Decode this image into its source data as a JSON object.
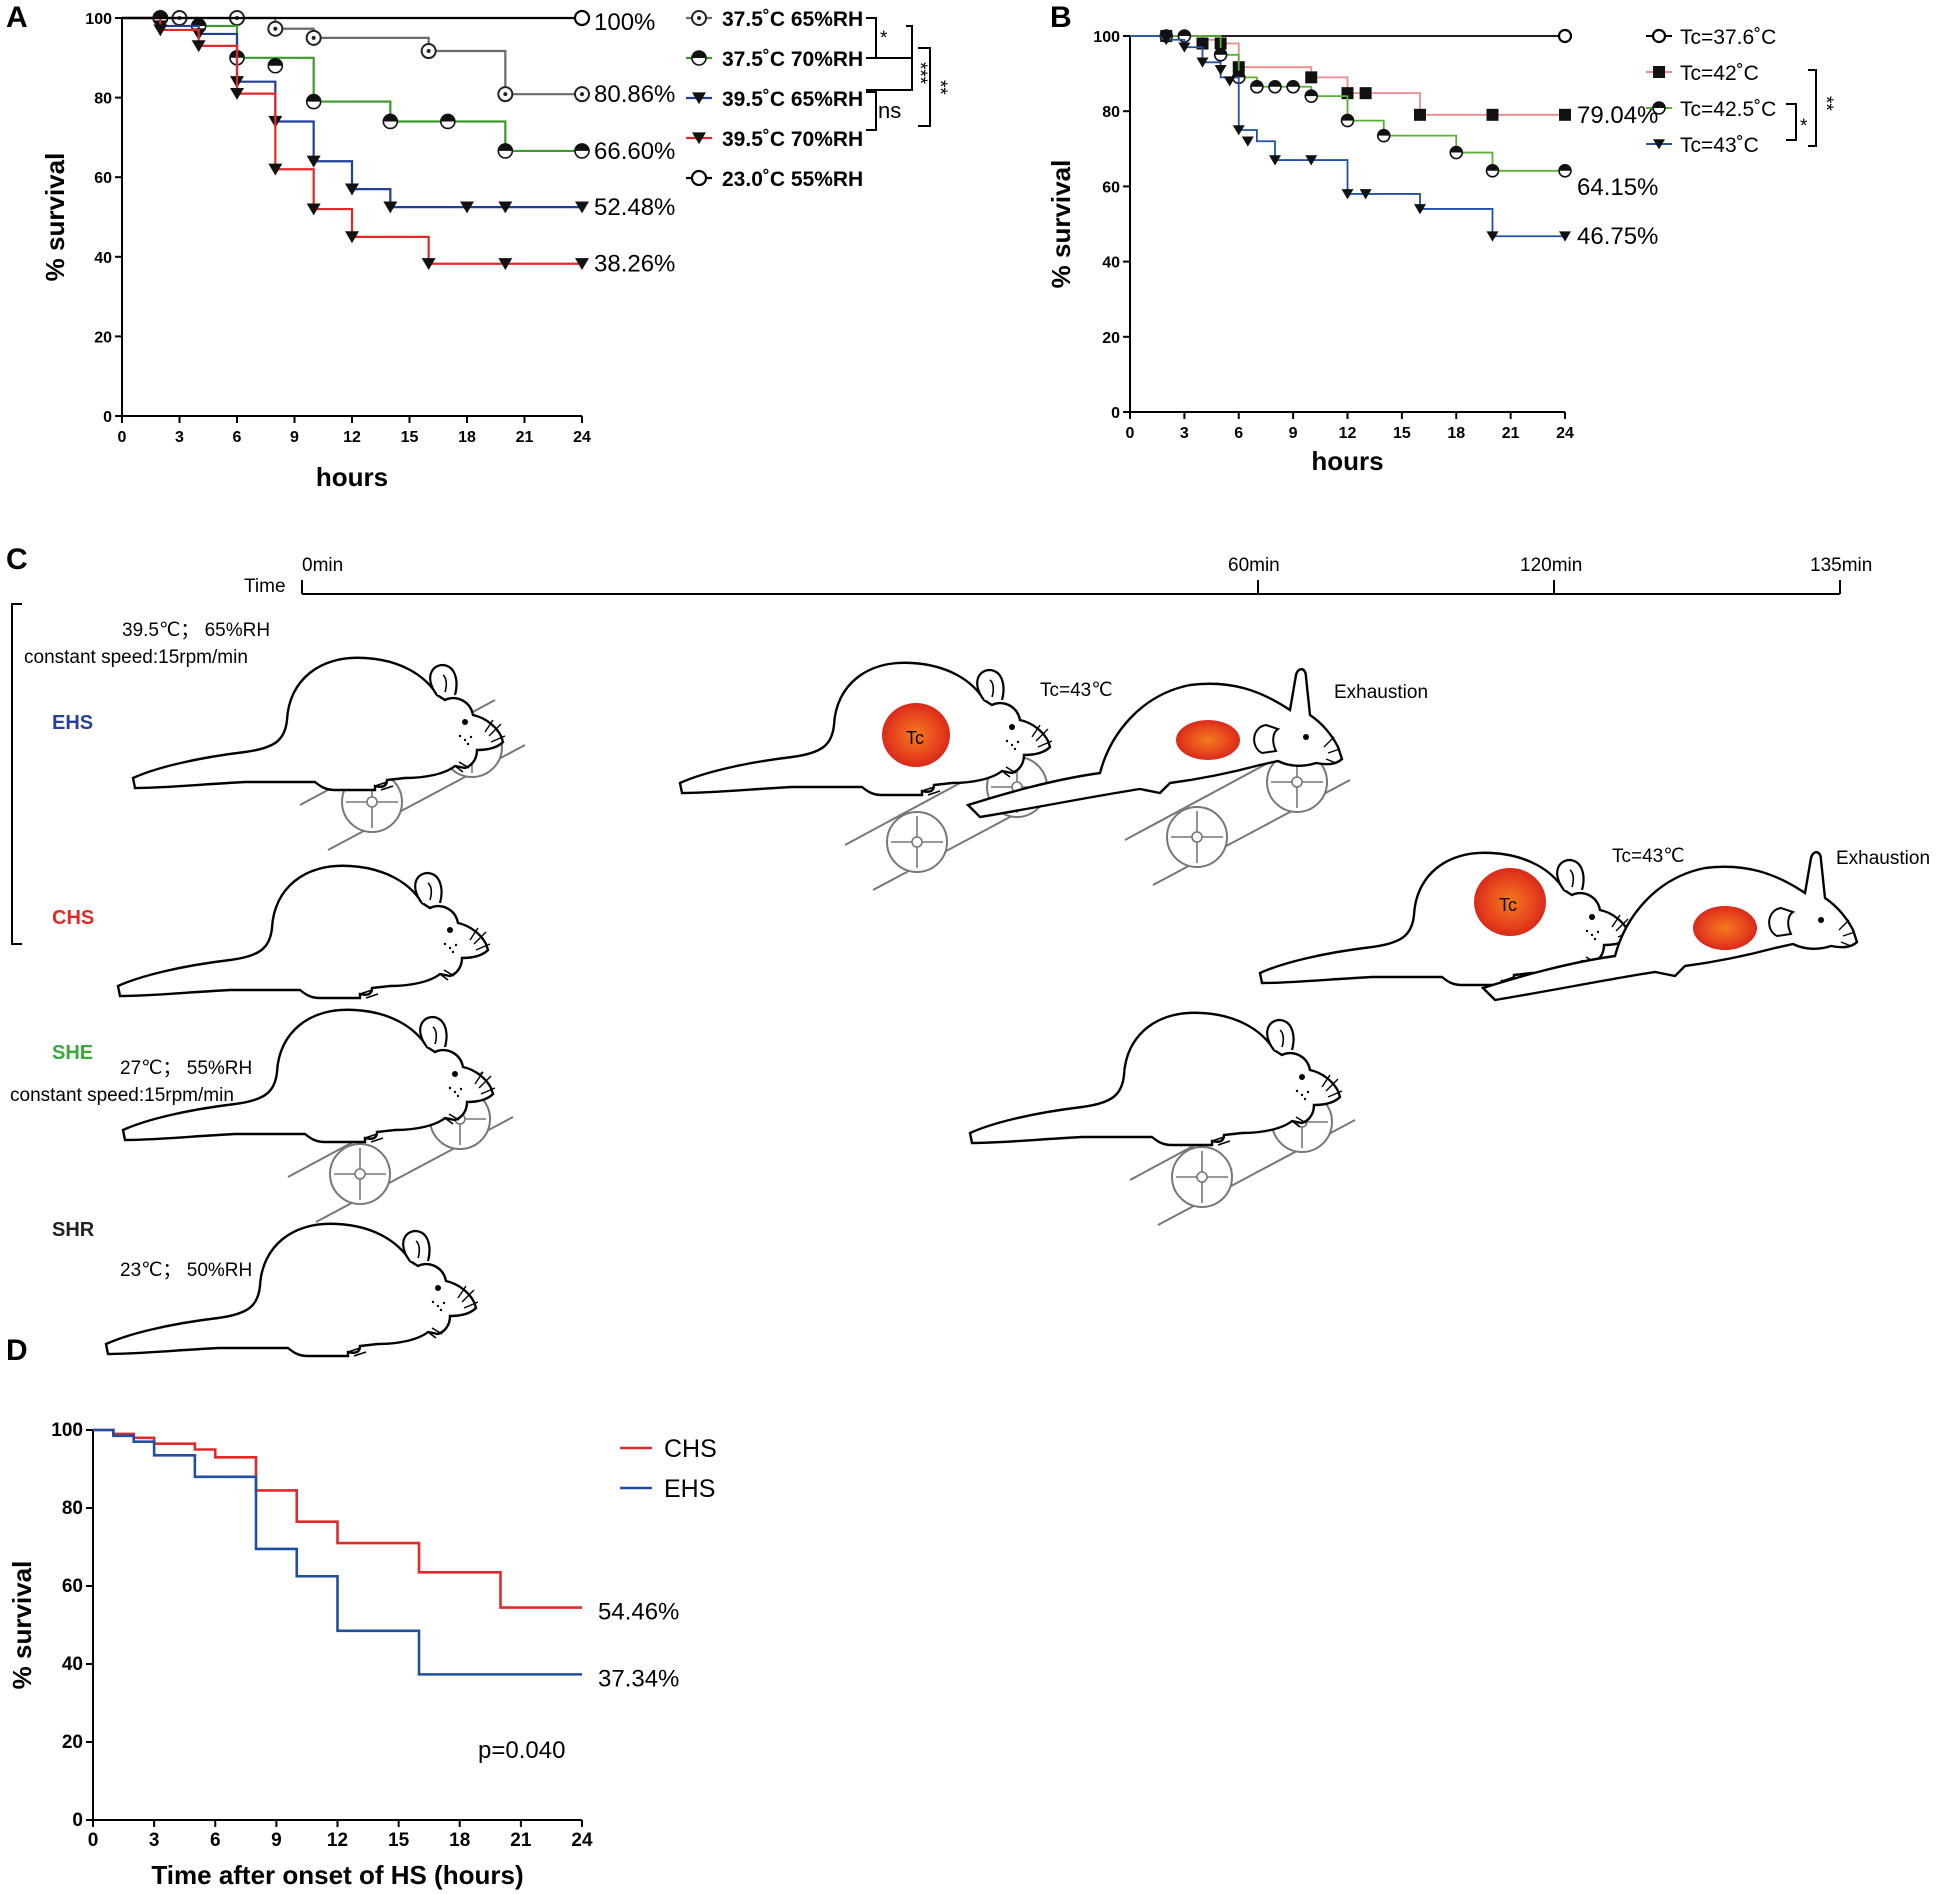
{
  "panels": {
    "A": {
      "label": "A"
    },
    "B": {
      "label": "B"
    },
    "C": {
      "label": "C"
    },
    "D": {
      "label": "D"
    }
  },
  "chart_data": [
    {
      "panel": "A",
      "type": "line",
      "subtype": "kaplan-meier",
      "xlabel": "hours",
      "ylabel": "% survival",
      "xlim": [
        0,
        24
      ],
      "ylim": [
        0,
        100
      ],
      "xticks": [
        0,
        3,
        6,
        9,
        12,
        15,
        18,
        21,
        24
      ],
      "yticks": [
        0,
        20,
        40,
        60,
        80,
        100
      ],
      "series": [
        {
          "name": "37.5˚C 65%RH",
          "color": "#6b6b6b",
          "marker": "circle-dot",
          "x": [
            0,
            6,
            8,
            10,
            16,
            20,
            24
          ],
          "y": [
            100,
            100,
            97.3,
            95,
            91.7,
            80.86,
            80.86
          ],
          "markers_x": [
            2,
            3,
            6,
            8,
            10,
            16,
            20,
            24
          ],
          "markers_y": [
            100,
            100,
            100,
            97.3,
            95,
            91.7,
            80.86,
            80.86
          ],
          "end_label": "80.86%"
        },
        {
          "name": "37.5˚C 70%RH",
          "color": "#3a9a2a",
          "marker": "circle-half",
          "x": [
            0,
            4,
            6,
            10,
            14,
            20,
            24
          ],
          "y": [
            100,
            98,
            90,
            79,
            74,
            66.6,
            66.6
          ],
          "markers_x": [
            2,
            4,
            6,
            8,
            10,
            14,
            17,
            20,
            24
          ],
          "markers_y": [
            100,
            98,
            90,
            88,
            79,
            74,
            74,
            66.6,
            66.6
          ],
          "end_label": "66.60%"
        },
        {
          "name": "39.5˚C 65%RH",
          "color": "#1f3f99",
          "marker": "triangle-down",
          "x": [
            0,
            2,
            4,
            6,
            8,
            10,
            12,
            14,
            24
          ],
          "y": [
            100,
            98,
            96,
            84,
            74,
            64,
            57,
            52.48,
            52.48
          ],
          "markers_x": [
            2,
            4,
            6,
            8,
            10,
            12,
            14,
            18,
            20,
            24
          ],
          "markers_y": [
            98,
            96,
            84,
            74,
            64,
            57,
            52.48,
            52.48,
            52.48,
            52.48
          ],
          "end_label": "52.48%"
        },
        {
          "name": "39.5˚C 70%RH",
          "color": "#e02a2a",
          "marker": "triangle-down",
          "x": [
            0,
            2,
            4,
            6,
            8,
            10,
            12,
            16,
            24
          ],
          "y": [
            100,
            97,
            93,
            81,
            62,
            52,
            45,
            38.26,
            38.26
          ],
          "markers_x": [
            2,
            4,
            6,
            8,
            10,
            12,
            16,
            20,
            24
          ],
          "markers_y": [
            97,
            93,
            81,
            62,
            52,
            45,
            38.26,
            38.26,
            38.26
          ],
          "end_label": "38.26%"
        },
        {
          "name": "23.0˚C 55%RH",
          "color": "#000000",
          "marker": "circle-open",
          "x": [
            0,
            24
          ],
          "y": [
            100,
            100
          ],
          "markers_x": [
            24
          ],
          "markers_y": [
            100
          ],
          "end_label": "100%"
        }
      ],
      "significance": [
        {
          "label": "*",
          "pair": "37.5˚C 65%RH vs 37.5˚C 70%RH"
        },
        {
          "label": "***",
          "pair": "37.5˚C 65%RH vs 39.5˚C 65%RH"
        },
        {
          "label": "ns",
          "pair": "39.5˚C 65%RH vs 39.5˚C 70%RH"
        },
        {
          "label": "**",
          "pair": "37.5˚C 70%RH vs 39.5˚C 70%RH"
        }
      ]
    },
    {
      "panel": "B",
      "type": "line",
      "subtype": "kaplan-meier",
      "xlabel": "hours",
      "ylabel": "% survival",
      "xlim": [
        0,
        24
      ],
      "ylim": [
        0,
        100
      ],
      "xticks": [
        0,
        3,
        6,
        9,
        12,
        15,
        18,
        21,
        24
      ],
      "yticks": [
        0,
        20,
        40,
        60,
        80,
        100
      ],
      "series": [
        {
          "name": "Tc=37.6˚C",
          "color": "#000000",
          "marker": "circle-open",
          "x": [
            0,
            24
          ],
          "y": [
            100,
            100
          ],
          "markers_x": [
            24
          ],
          "markers_y": [
            100
          ],
          "end_label": ""
        },
        {
          "name": "Tc=42˚C",
          "color": "#ee8a8a",
          "marker": "square",
          "x": [
            0,
            4,
            5,
            6,
            10,
            12,
            16,
            24
          ],
          "y": [
            100,
            99,
            98,
            91.7,
            89,
            84.8,
            79.04,
            79.04
          ],
          "markers_x": [
            2,
            4,
            5,
            6,
            10,
            12,
            13,
            16,
            20,
            24
          ],
          "markers_y": [
            100,
            98,
            98,
            91.7,
            89,
            84.8,
            84.8,
            79.04,
            79.04,
            79.04
          ],
          "end_label": "79.04%"
        },
        {
          "name": "Tc=42.5˚C",
          "color": "#5ab035",
          "marker": "circle-half",
          "x": [
            0,
            5,
            6,
            7,
            10,
            12,
            14,
            18,
            20,
            24
          ],
          "y": [
            100,
            95,
            89,
            86.5,
            84,
            77.5,
            73.5,
            69,
            64.15,
            64.15
          ],
          "markers_x": [
            2,
            3,
            5,
            6,
            7,
            8,
            9,
            10,
            12,
            14,
            18,
            20,
            24
          ],
          "markers_y": [
            100,
            100,
            95,
            89,
            86.5,
            86.5,
            86.5,
            84,
            77.5,
            73.5,
            69,
            64.15,
            64.15
          ],
          "end_label": "64.15%"
        },
        {
          "name": "Tc=43˚C",
          "color": "#2050a8",
          "marker": "triangle-down",
          "x": [
            0,
            2,
            3,
            4,
            5,
            6,
            7,
            8,
            12,
            16,
            20,
            24
          ],
          "y": [
            100,
            99,
            97,
            93,
            89,
            75,
            72,
            67,
            58,
            54,
            46.75,
            46.75
          ],
          "markers_x": [
            2,
            3,
            4,
            5,
            5.5,
            6,
            6.5,
            8,
            10,
            12,
            13,
            16,
            20,
            24
          ],
          "markers_y": [
            99,
            97,
            93,
            91,
            88,
            75,
            72,
            67,
            67,
            58,
            58,
            54,
            46.75,
            46.75
          ],
          "end_label": "46.75%"
        }
      ],
      "significance": [
        {
          "label": "*",
          "pair": "Tc=42.5˚C vs Tc=43˚C"
        },
        {
          "label": "**",
          "pair": "Tc=42˚C vs Tc=43˚C"
        }
      ]
    },
    {
      "panel": "D",
      "type": "line",
      "subtype": "kaplan-meier",
      "xlabel": "Time after onset of HS (hours)",
      "ylabel": "% survival",
      "xlim": [
        0,
        24
      ],
      "ylim": [
        0,
        100
      ],
      "xticks": [
        0,
        3,
        6,
        9,
        12,
        15,
        18,
        21,
        24
      ],
      "yticks": [
        0,
        20,
        40,
        60,
        80,
        100
      ],
      "annotation": "p=0.040",
      "series": [
        {
          "name": "CHS",
          "color": "#e02a2a",
          "x": [
            0,
            1,
            2,
            3,
            5,
            6,
            8,
            10,
            12,
            16,
            20,
            24
          ],
          "y": [
            100,
            99,
            98,
            96.5,
            95,
            93,
            84.5,
            76.5,
            71,
            63.5,
            54.46,
            54.46
          ],
          "end_label": "54.46%"
        },
        {
          "name": "EHS",
          "color": "#1f4fa0",
          "x": [
            0,
            1,
            2,
            3,
            5,
            8,
            10,
            12,
            16,
            24
          ],
          "y": [
            100,
            98.5,
            97,
            93.5,
            88,
            69.5,
            62.5,
            48.5,
            37.34,
            37.34
          ],
          "end_label": "37.34%"
        }
      ]
    }
  ],
  "protocol": {
    "time_axis": {
      "label": "Time",
      "ticks": [
        "0min",
        "60min",
        "120min",
        "135min"
      ]
    },
    "groups": [
      {
        "name": "EHS",
        "color": "#2a3f9a",
        "cond1": "39.5℃； 65%RH",
        "cond2": "constant speed:15rpm/min"
      },
      {
        "name": "CHS",
        "color": "#e02a2a"
      },
      {
        "name": "SHE",
        "color": "#3aa83a",
        "cond1": "27℃； 55%RH",
        "cond2": "constant speed:15rpm/min"
      },
      {
        "name": "SHR",
        "color": "#222222",
        "cond1": "23℃； 50%RH"
      }
    ],
    "tc_label": "Tc",
    "tc_value_ehs": "Tc=43℃",
    "tc_value_chs": "Tc=43℃",
    "exhaustion_ehs": "Exhaustion",
    "exhaustion_chs": "Exhaustion"
  }
}
